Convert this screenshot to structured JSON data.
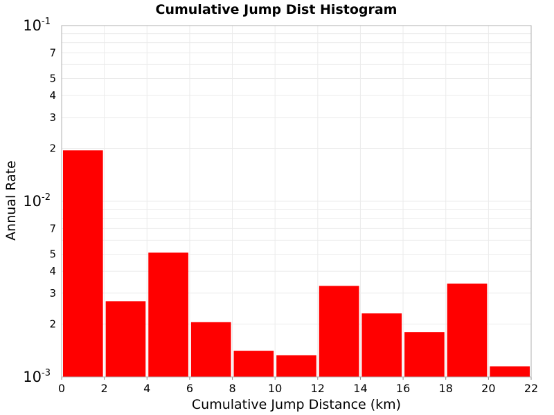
{
  "chart_data": {
    "type": "bar",
    "title": "Cumulative Jump Dist Histogram",
    "xlabel": "Cumulative Jump Distance (km)",
    "ylabel": "Annual Rate",
    "xlim": [
      0,
      22
    ],
    "ylim": [
      0.001,
      0.1
    ],
    "yscale": "log",
    "grid": true,
    "bar_color": "#ff0000",
    "bin_width": 2,
    "x_ticks": [
      "0",
      "2",
      "4",
      "6",
      "8",
      "10",
      "12",
      "14",
      "16",
      "18",
      "20",
      "22"
    ],
    "y_major_ticks": [
      {
        "value": 0.1,
        "base": "10",
        "exp": "-1"
      },
      {
        "value": 0.01,
        "base": "10",
        "exp": "-2"
      },
      {
        "value": 0.001,
        "base": "10",
        "exp": "-3"
      }
    ],
    "y_minor_tick_labels": [
      "7",
      "5",
      "4",
      "3",
      "2"
    ],
    "bins": [
      {
        "x_start": 0,
        "x_end": 2,
        "value": 0.0195
      },
      {
        "x_start": 2,
        "x_end": 4,
        "value": 0.0027
      },
      {
        "x_start": 4,
        "x_end": 6,
        "value": 0.0051
      },
      {
        "x_start": 6,
        "x_end": 8,
        "value": 0.00205
      },
      {
        "x_start": 8,
        "x_end": 10,
        "value": 0.00141
      },
      {
        "x_start": 10,
        "x_end": 12,
        "value": 0.00133
      },
      {
        "x_start": 12,
        "x_end": 14,
        "value": 0.0033
      },
      {
        "x_start": 14,
        "x_end": 16,
        "value": 0.0023
      },
      {
        "x_start": 16,
        "x_end": 18,
        "value": 0.0018
      },
      {
        "x_start": 18,
        "x_end": 20,
        "value": 0.0034
      },
      {
        "x_start": 20,
        "x_end": 22,
        "value": 0.00115
      }
    ]
  }
}
